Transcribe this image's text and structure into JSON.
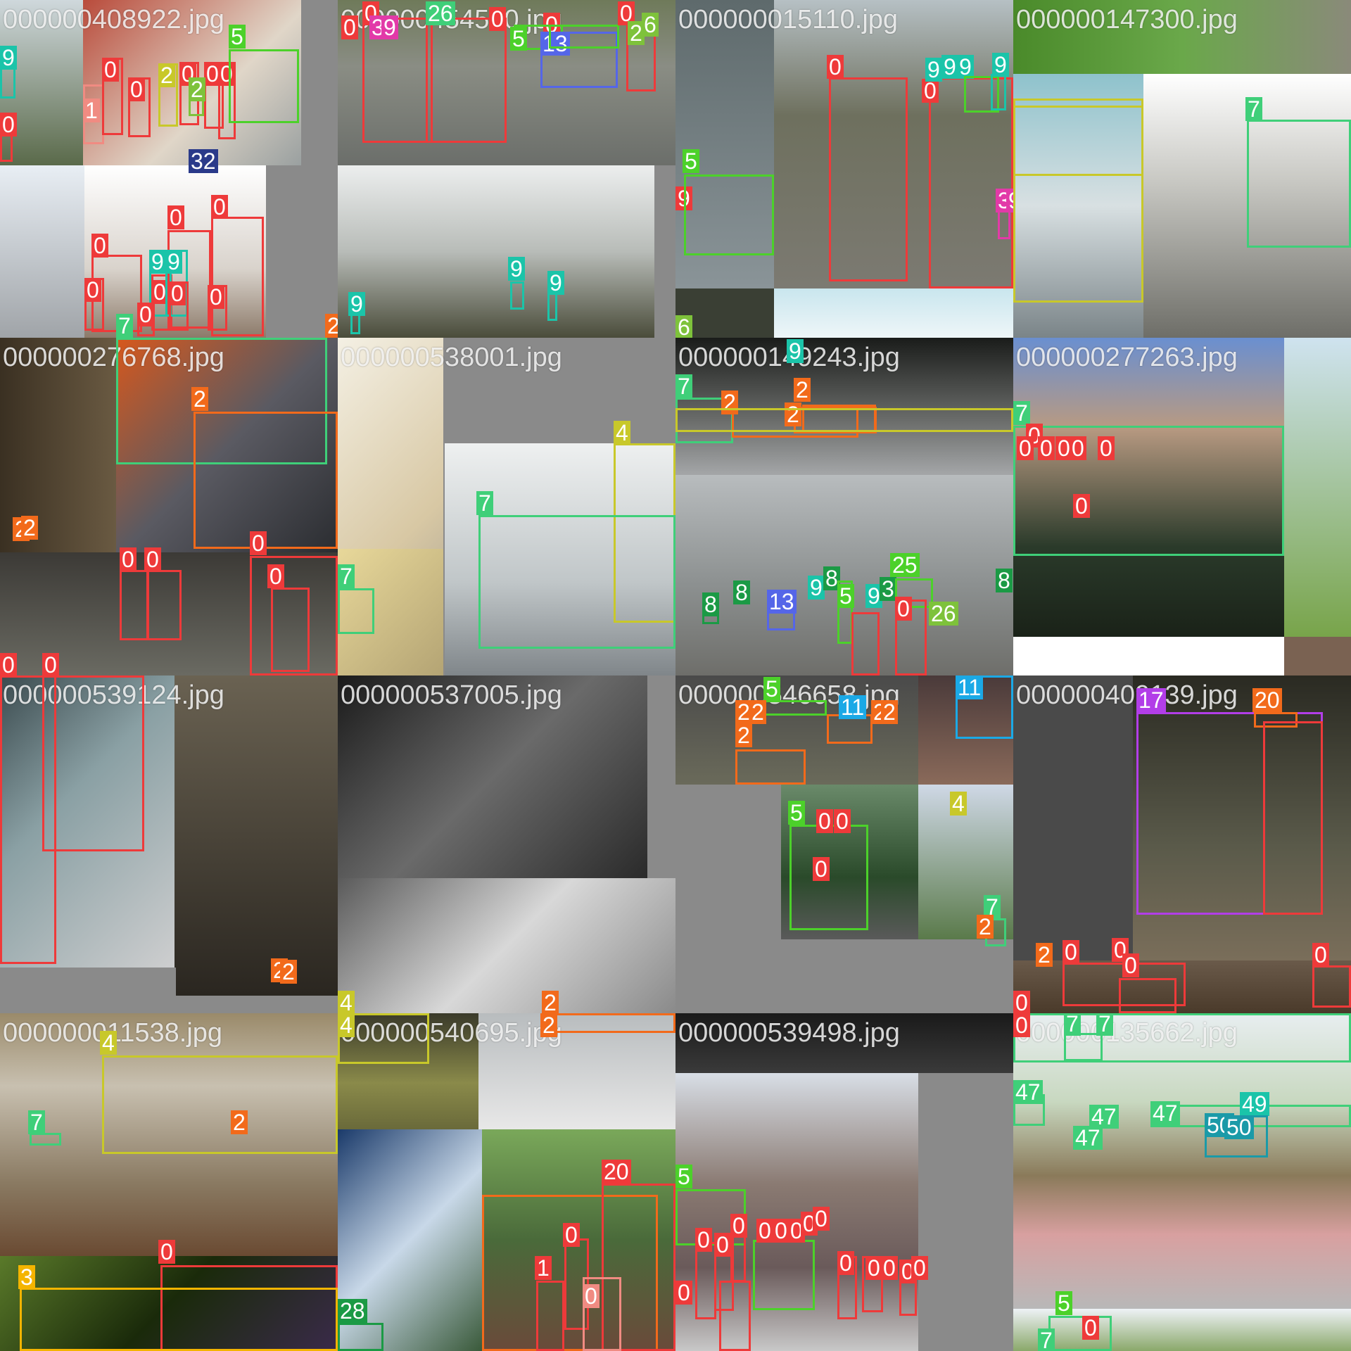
{
  "tiles": [
    {
      "filename": "000000408922.jpg",
      "labels": [
        "9",
        "0",
        "1",
        "0",
        "0",
        "2",
        "0",
        "0",
        "0",
        "2",
        "5",
        "32",
        "0",
        "0",
        "0",
        "0",
        "9",
        "9",
        "0",
        "0",
        "0",
        "7",
        "0",
        "2"
      ]
    },
    {
      "filename": "000000454500.jpg",
      "labels": [
        "0",
        "0",
        "3",
        "9",
        "26",
        "0",
        "0",
        "5",
        "13",
        "0",
        "2",
        "6",
        "9",
        "9",
        "9"
      ]
    },
    {
      "filename": "000000015110.jpg",
      "labels": [
        "0",
        "0",
        "9",
        "9",
        "9",
        "9",
        "9",
        "4",
        "5",
        "3",
        "9",
        "6"
      ]
    },
    {
      "filename": "000000147300.jpg",
      "labels": [
        "7"
      ]
    },
    {
      "filename": "000000276768.jpg",
      "labels": [
        "2",
        "2",
        "2",
        "0",
        "0",
        "0",
        "0",
        "0",
        "0"
      ]
    },
    {
      "filename": "000000538001.jpg",
      "labels": [
        "4",
        "7",
        "7"
      ]
    },
    {
      "filename": "000000149243.jpg",
      "labels": [
        "9",
        "7",
        "2",
        "2",
        "2",
        "8",
        "8",
        "13",
        "9",
        "8",
        "5",
        "9",
        "3",
        "25",
        "0",
        "26",
        "8"
      ]
    },
    {
      "filename": "000000277263.jpg",
      "labels": [
        "7",
        "0",
        "0",
        "0",
        "0",
        "0",
        "0",
        "0"
      ]
    },
    {
      "filename": "000000539124.jpg",
      "labels": [
        "2",
        "2"
      ]
    },
    {
      "filename": "000000537005.jpg",
      "labels": [
        "4",
        "2"
      ]
    },
    {
      "filename": "000000546658.jpg",
      "labels": [
        "5",
        "2",
        "2",
        "2",
        "11",
        "2",
        "2",
        "11",
        "5",
        "0",
        "0",
        "0",
        "4",
        "7",
        "2"
      ]
    },
    {
      "filename": "000000409139.jpg",
      "labels": [
        "17",
        "20",
        "2",
        "0",
        "0",
        "0",
        "0",
        "0"
      ]
    },
    {
      "filename": "000000011538.jpg",
      "labels": [
        "4",
        "7",
        "2",
        "0",
        "3"
      ]
    },
    {
      "filename": "000000540695.jpg",
      "labels": [
        "4",
        "2",
        "28",
        "20",
        "0",
        "0",
        "1"
      ]
    },
    {
      "filename": "000000539498.jpg",
      "labels": [
        "5",
        "0",
        "0",
        "0",
        "0",
        "0",
        "0",
        "0",
        "0",
        "0",
        "0",
        "0",
        "0",
        "0",
        "0"
      ]
    },
    {
      "filename": "000000135662.jpg",
      "labels": [
        "0",
        "7",
        "7",
        "47",
        "47",
        "47",
        "47",
        "49",
        "50",
        "50",
        "5",
        "7",
        "0"
      ]
    }
  ],
  "colors": {
    "class_0": "#ee3a3a",
    "class_1": "#f08b82",
    "class_2": "#f26a1b",
    "class_3": "#f4b400",
    "class_4": "#c8c82a",
    "class_5": "#4cd12a",
    "class_6": "#7ec23b",
    "class_7": "#3fcf79",
    "class_8": "#1b9a45",
    "class_9": "#1bc4a9",
    "class_11": "#1ba9e6",
    "class_13": "#5566e8",
    "class_17": "#b23ee8",
    "class_20": "#f26a1b",
    "class_25": "#4cd12a",
    "class_26": "#7ec23b",
    "class_28": "#1b9a45",
    "class_32": "#2a3a8a",
    "class_47": "#3fcf79",
    "class_49": "#1bc4a9",
    "class_50": "#1b9aa8"
  }
}
